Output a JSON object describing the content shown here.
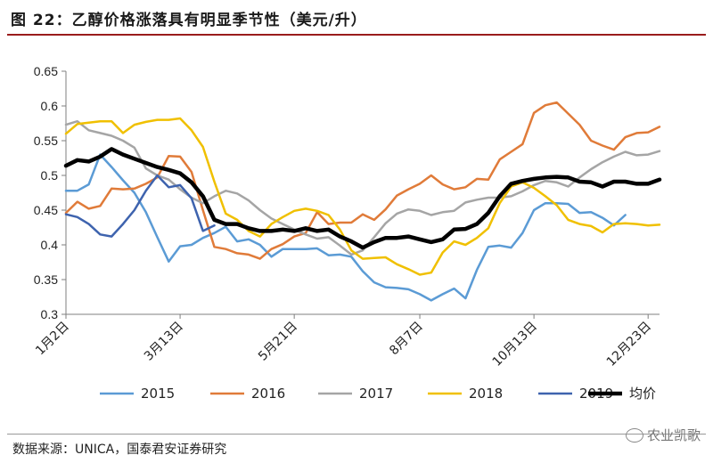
{
  "figure": {
    "title": "图 22：乙醇价格涨落具有明显季节性（美元/升）",
    "source": "数据来源：UNICA，国泰君安证券研究",
    "watermark": "农业凯歌"
  },
  "chart_data": {
    "type": "line",
    "title": "乙醇价格涨落具有明显季节性（美元/升）",
    "xlabel": "",
    "ylabel": "美元/升",
    "ylim": [
      0.3,
      0.65
    ],
    "yticks": [
      "0.3",
      "0.35",
      "0.4",
      "0.45",
      "0.5",
      "0.55",
      "0.6",
      "0.65"
    ],
    "x_count": 53,
    "xticks": [
      {
        "index": 0,
        "label": "1月2日"
      },
      {
        "index": 10,
        "label": "3月13日"
      },
      {
        "index": 20,
        "label": "5月21日"
      },
      {
        "index": 31,
        "label": "8月7日"
      },
      {
        "index": 41,
        "label": "10月13日"
      },
      {
        "index": 51,
        "label": "12月23日"
      }
    ],
    "legend_position": "bottom",
    "series": [
      {
        "name": "2015",
        "color": "#5b9bd5",
        "width": 2.5,
        "values": [
          0.478,
          0.478,
          0.487,
          0.53,
          0.512,
          0.493,
          0.475,
          0.447,
          0.411,
          0.376,
          0.398,
          0.4,
          0.41,
          0.417,
          0.426,
          0.405,
          0.408,
          0.4,
          0.383,
          0.394,
          0.394,
          0.394,
          0.395,
          0.385,
          0.386,
          0.383,
          0.362,
          0.346,
          0.339,
          0.338,
          0.336,
          0.329,
          0.32,
          0.329,
          0.337,
          0.323,
          0.364,
          0.397,
          0.399,
          0.396,
          0.417,
          0.45,
          0.46,
          0.46,
          0.459,
          0.446,
          0.447,
          0.439,
          0.428,
          0.443
        ]
      },
      {
        "name": "2016",
        "color": "#e07b39",
        "width": 2.5,
        "values": [
          0.446,
          0.462,
          0.452,
          0.456,
          0.481,
          0.48,
          0.481,
          0.488,
          0.497,
          0.528,
          0.527,
          0.505,
          0.45,
          0.397,
          0.394,
          0.388,
          0.386,
          0.38,
          0.394,
          0.401,
          0.412,
          0.417,
          0.447,
          0.43,
          0.432,
          0.432,
          0.444,
          0.436,
          0.451,
          0.471,
          0.48,
          0.488,
          0.5,
          0.487,
          0.48,
          0.483,
          0.495,
          0.494,
          0.523,
          0.534,
          0.545,
          0.59,
          0.601,
          0.605,
          0.589,
          0.573,
          0.55,
          0.543,
          0.537,
          0.555,
          0.561,
          0.562,
          0.57
        ]
      },
      {
        "name": "2017",
        "color": "#a5a5a5",
        "width": 2.5,
        "values": [
          0.573,
          0.578,
          0.565,
          0.561,
          0.557,
          0.55,
          0.54,
          0.51,
          0.5,
          0.494,
          0.48,
          0.468,
          0.46,
          0.47,
          0.478,
          0.474,
          0.464,
          0.45,
          0.438,
          0.43,
          0.422,
          0.415,
          0.409,
          0.411,
          0.399,
          0.386,
          0.392,
          0.411,
          0.431,
          0.445,
          0.451,
          0.449,
          0.443,
          0.447,
          0.449,
          0.461,
          0.465,
          0.468,
          0.468,
          0.47,
          0.477,
          0.486,
          0.492,
          0.49,
          0.484,
          0.497,
          0.509,
          0.519,
          0.527,
          0.534,
          0.529,
          0.53,
          0.535
        ]
      },
      {
        "name": "2018",
        "color": "#f0c000",
        "width": 2.5,
        "values": [
          0.56,
          0.574,
          0.576,
          0.578,
          0.578,
          0.561,
          0.573,
          0.577,
          0.58,
          0.58,
          0.582,
          0.565,
          0.541,
          0.491,
          0.445,
          0.436,
          0.42,
          0.412,
          0.43,
          0.44,
          0.449,
          0.452,
          0.449,
          0.443,
          0.422,
          0.392,
          0.38,
          0.381,
          0.382,
          0.372,
          0.365,
          0.357,
          0.36,
          0.389,
          0.405,
          0.4,
          0.41,
          0.424,
          0.46,
          0.484,
          0.49,
          0.482,
          0.47,
          0.457,
          0.436,
          0.43,
          0.427,
          0.418,
          0.43,
          0.431,
          0.43,
          0.428,
          0.429
        ]
      },
      {
        "name": "2019",
        "color": "#3e63ae",
        "width": 2.5,
        "values": [
          0.444,
          0.44,
          0.43,
          0.415,
          0.412,
          0.43,
          0.45,
          0.478,
          0.5,
          0.483,
          0.486,
          0.467,
          0.42,
          0.428
        ]
      },
      {
        "name": "均价",
        "color": "#000000",
        "width": 4.5,
        "values": [
          0.514,
          0.522,
          0.52,
          0.527,
          0.538,
          0.53,
          0.524,
          0.518,
          0.512,
          0.508,
          0.503,
          0.49,
          0.47,
          0.436,
          0.43,
          0.43,
          0.424,
          0.42,
          0.42,
          0.422,
          0.42,
          0.424,
          0.42,
          0.422,
          0.412,
          0.405,
          0.396,
          0.404,
          0.41,
          0.41,
          0.412,
          0.408,
          0.404,
          0.408,
          0.422,
          0.423,
          0.43,
          0.446,
          0.47,
          0.488,
          0.492,
          0.495,
          0.497,
          0.498,
          0.497,
          0.491,
          0.49,
          0.484,
          0.491,
          0.491,
          0.488,
          0.488,
          0.494
        ]
      }
    ]
  }
}
